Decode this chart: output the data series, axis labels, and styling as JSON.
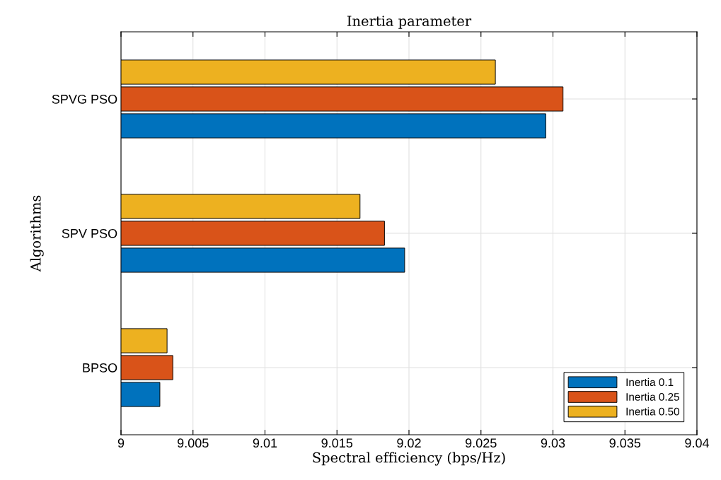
{
  "chart_data": {
    "type": "bar",
    "orientation": "horizontal",
    "title": "Inertia parameter",
    "xlabel": "Spectral efficiency (bps/Hz)",
    "ylabel": "Algorithms",
    "categories": [
      "SPVG PSO",
      "SPV PSO",
      "BPSO"
    ],
    "series": [
      {
        "name": "Inertia 0.1",
        "color": "#0072bd",
        "values": [
          9.0295,
          9.0197,
          9.0027
        ]
      },
      {
        "name": "Inertia 0.25",
        "color": "#d95319",
        "values": [
          9.0307,
          9.0183,
          9.0036
        ]
      },
      {
        "name": "Inertia 0.50",
        "color": "#edb120",
        "values": [
          9.026,
          9.0166,
          9.0032
        ]
      }
    ],
    "xlim": [
      9,
      9.04
    ],
    "xticks": [
      9,
      9.005,
      9.01,
      9.015,
      9.02,
      9.025,
      9.03,
      9.035,
      9.04
    ],
    "grid": true,
    "legend": "bottom right"
  }
}
